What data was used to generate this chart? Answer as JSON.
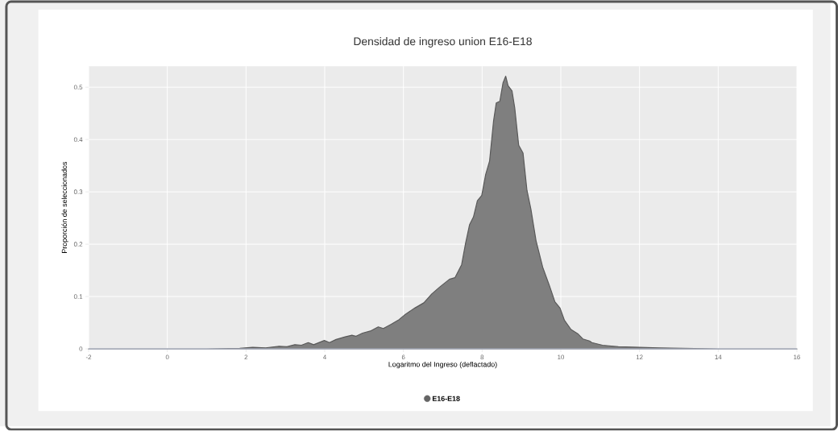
{
  "chart_data": {
    "type": "area",
    "title": "Densidad de ingreso union E16-E18",
    "xlabel": "Logaritmo del Ingreso (deflactado)",
    "ylabel": "Proporción de seleccionados",
    "x": [
      -2,
      0,
      1,
      1.84,
      2.17,
      2.5,
      2.84,
      3.04,
      3.24,
      3.41,
      3.58,
      3.72,
      3.99,
      4.12,
      4.29,
      4.52,
      4.69,
      4.79,
      4.96,
      5.16,
      5.36,
      5.49,
      5.69,
      5.89,
      6.05,
      6.29,
      6.52,
      6.72,
      6.92,
      7.17,
      7.31,
      7.48,
      7.58,
      7.68,
      7.78,
      7.88,
      7.99,
      8.09,
      8.19,
      8.29,
      8.36,
      8.45,
      8.53,
      8.6,
      8.66,
      8.76,
      8.83,
      8.93,
      9.04,
      9.14,
      9.24,
      9.37,
      9.54,
      9.71,
      9.85,
      9.98,
      10.09,
      10.26,
      10.43,
      10.56,
      10.73,
      10.79,
      11.06,
      11.46,
      12.0,
      12.5,
      14,
      16
    ],
    "series": [
      {
        "name": "E16-E18",
        "color": "#7f7f7f",
        "values": [
          0,
          0,
          0,
          0.001,
          0.003,
          0.002,
          0.005,
          0.004,
          0.008,
          0.007,
          0.012,
          0.008,
          0.016,
          0.012,
          0.018,
          0.023,
          0.026,
          0.024,
          0.03,
          0.034,
          0.042,
          0.039,
          0.047,
          0.056,
          0.066,
          0.078,
          0.088,
          0.105,
          0.118,
          0.133,
          0.136,
          0.161,
          0.202,
          0.237,
          0.252,
          0.283,
          0.293,
          0.333,
          0.359,
          0.435,
          0.47,
          0.473,
          0.508,
          0.521,
          0.503,
          0.493,
          0.46,
          0.389,
          0.374,
          0.303,
          0.267,
          0.207,
          0.156,
          0.121,
          0.09,
          0.078,
          0.055,
          0.037,
          0.029,
          0.019,
          0.015,
          0.012,
          0.007,
          0.004,
          0.003,
          0.002,
          0,
          0
        ]
      }
    ],
    "xlim": [
      -2,
      16
    ],
    "xticks": [
      -2,
      0,
      2,
      4,
      6,
      8,
      10,
      12,
      14,
      16
    ],
    "ylim": [
      0,
      0.54
    ],
    "yticks": [
      0,
      0.1,
      0.2,
      0.3,
      0.4,
      0.5
    ],
    "grid": true,
    "legend": "bottom"
  }
}
